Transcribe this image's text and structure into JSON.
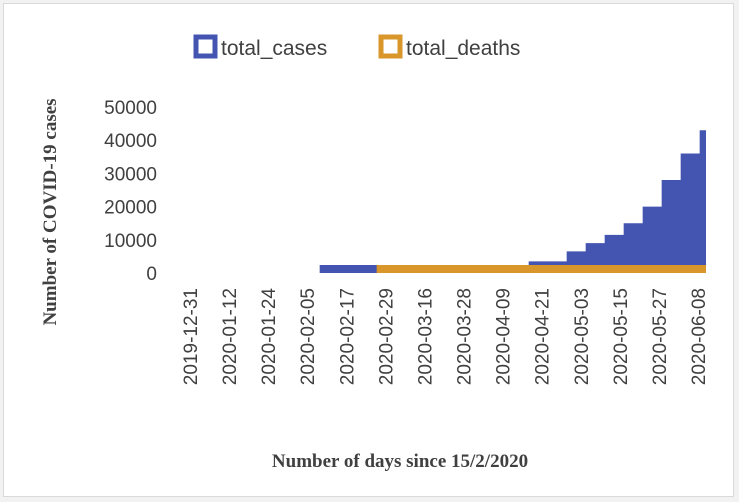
{
  "chart_data": {
    "type": "area",
    "xlabel": "Number of days  since 15/2/2020",
    "ylabel": "Number of COVID-19 cases",
    "y_ticks": [
      "0",
      "10000",
      "20000",
      "30000",
      "40000",
      "50000"
    ],
    "ylim": [
      0,
      50000
    ],
    "x_ticks": [
      "2019-12-31",
      "2020-01-12",
      "2020-01-24",
      "2020-02-05",
      "2020-02-17",
      "2020-02-29",
      "2020-03-16",
      "2020-03-28",
      "2020-04-09",
      "2020-04-21",
      "2020-05-03",
      "2020-05-15",
      "2020-05-27",
      "2020-06-08"
    ],
    "grid": false,
    "legend_position": "top",
    "x": [
      "2019-12-31",
      "2020-01-12",
      "2020-01-24",
      "2020-02-05",
      "2020-02-15",
      "2020-02-17",
      "2020-02-29",
      "2020-03-04",
      "2020-03-16",
      "2020-03-28",
      "2020-04-04",
      "2020-04-09",
      "2020-04-21",
      "2020-05-03",
      "2020-05-09",
      "2020-05-15",
      "2020-05-21",
      "2020-05-27",
      "2020-06-02",
      "2020-06-08",
      "2020-06-14",
      "2020-06-16"
    ],
    "series": [
      {
        "name": "total_cases",
        "color": "#4355b0",
        "values": [
          0,
          0,
          0,
          0,
          1,
          1,
          1,
          2,
          150,
          900,
          1300,
          1800,
          3500,
          6500,
          9000,
          11500,
          15000,
          20000,
          28000,
          36000,
          43000,
          45500
        ]
      },
      {
        "name": "total_deaths",
        "color": "#d9962a",
        "values": [
          0,
          0,
          0,
          0,
          0,
          0,
          0,
          1,
          5,
          60,
          100,
          120,
          200,
          350,
          450,
          550,
          700,
          900,
          1200,
          1500,
          1800,
          1900
        ]
      }
    ]
  }
}
